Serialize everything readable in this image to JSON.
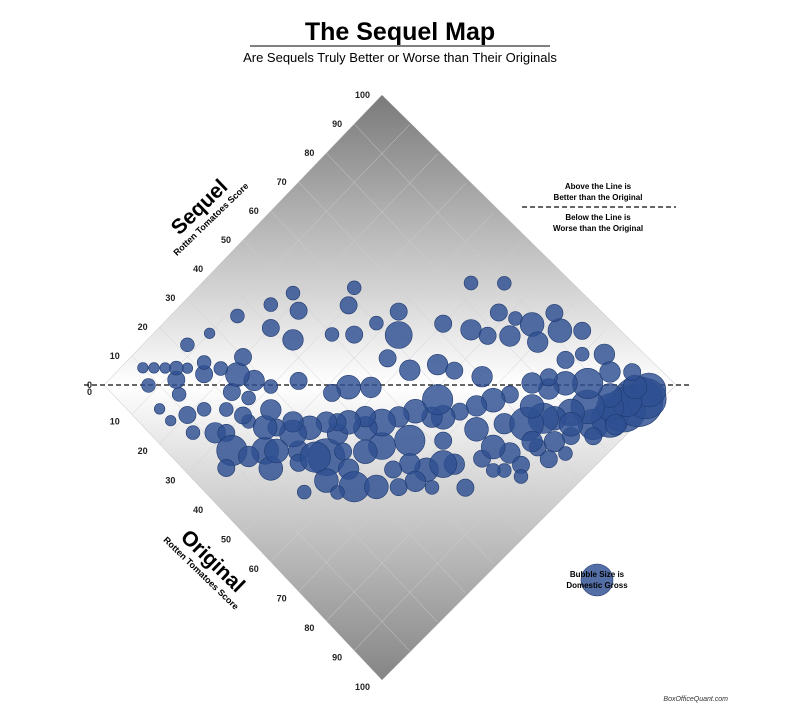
{
  "header": {
    "title": "The Sequel Map",
    "subtitle": "Are Sequels Truly Better or Worse than Their Originals"
  },
  "legend": {
    "above_line_1": "Above the Line is",
    "above_line_2": "Better than the Original",
    "below_line_1": "Below the Line is",
    "below_line_2": "Worse than the Original",
    "bubble_1": "Bubble Size is",
    "bubble_2": "Domestic Gross"
  },
  "credit": "BoxOfficeQuant.com",
  "colors": {
    "bubble": "#2e4f91",
    "bg_dark": "#7f7f7f",
    "bg_light": "#ffffff"
  },
  "chart_data": {
    "type": "scatter",
    "title": "The Sequel Map",
    "subtitle": "Are Sequels Truly Better or Worse than Their Originals",
    "x_axis": {
      "label_main": "Original",
      "label_sub": "Rotten Tomatoes Score",
      "range": [
        0,
        100
      ],
      "ticks": [
        "0",
        "10",
        "20",
        "30",
        "40",
        "50",
        "60",
        "70",
        "80",
        "90",
        "100"
      ]
    },
    "y_axis": {
      "label_main": "Sequel",
      "label_sub": "Rotten Tomatoes Score",
      "range": [
        0,
        100
      ],
      "ticks": [
        "0",
        "10",
        "20",
        "30",
        "40",
        "50",
        "60",
        "70",
        "80",
        "90",
        "100"
      ]
    },
    "reference_line": "sequel = original",
    "size_encoding": "Domestic Gross",
    "points": [
      {
        "x": 4,
        "y": 10,
        "s": 2
      },
      {
        "x": 8,
        "y": 8,
        "s": 3
      },
      {
        "x": 12,
        "y": 14,
        "s": 4
      },
      {
        "x": 15,
        "y": 12,
        "s": 3
      },
      {
        "x": 20,
        "y": 10,
        "s": 4
      },
      {
        "x": 22,
        "y": 14,
        "s": 3
      },
      {
        "x": 18,
        "y": 6,
        "s": 2
      },
      {
        "x": 28,
        "y": 12,
        "s": 5
      },
      {
        "x": 30,
        "y": 14,
        "s": 4
      },
      {
        "x": 26,
        "y": 18,
        "s": 3
      },
      {
        "x": 34,
        "y": 12,
        "s": 8
      },
      {
        "x": 40,
        "y": 18,
        "s": 7
      },
      {
        "x": 36,
        "y": 8,
        "s": 4
      },
      {
        "x": 32,
        "y": 20,
        "s": 3
      },
      {
        "x": 46,
        "y": 24,
        "s": 5
      },
      {
        "x": 48,
        "y": 22,
        "s": 4
      },
      {
        "x": 52,
        "y": 28,
        "s": 10
      },
      {
        "x": 56,
        "y": 24,
        "s": 6
      },
      {
        "x": 58,
        "y": 30,
        "s": 5
      },
      {
        "x": 62,
        "y": 28,
        "s": 8
      },
      {
        "x": 66,
        "y": 32,
        "s": 6
      },
      {
        "x": 70,
        "y": 36,
        "s": 4
      },
      {
        "x": 54,
        "y": 18,
        "s": 3
      },
      {
        "x": 44,
        "y": 16,
        "s": 6
      },
      {
        "x": 50,
        "y": 34,
        "s": 5
      },
      {
        "x": 60,
        "y": 40,
        "s": 7
      },
      {
        "x": 64,
        "y": 46,
        "s": 8
      },
      {
        "x": 72,
        "y": 44,
        "s": 6
      },
      {
        "x": 76,
        "y": 50,
        "s": 5
      },
      {
        "x": 70,
        "y": 52,
        "s": 4
      },
      {
        "x": 80,
        "y": 56,
        "s": 4
      },
      {
        "x": 74,
        "y": 60,
        "s": 6
      },
      {
        "x": 84,
        "y": 62,
        "s": 5
      },
      {
        "x": 86,
        "y": 58,
        "s": 3
      },
      {
        "x": 78,
        "y": 66,
        "s": 5
      },
      {
        "x": 88,
        "y": 68,
        "s": 4
      },
      {
        "x": 90,
        "y": 72,
        "s": 5
      },
      {
        "x": 92,
        "y": 76,
        "s": 4
      },
      {
        "x": 94,
        "y": 82,
        "s": 8
      },
      {
        "x": 96,
        "y": 86,
        "s": 10
      },
      {
        "x": 97,
        "y": 90,
        "s": 12
      },
      {
        "x": 98,
        "y": 94,
        "s": 14
      },
      {
        "x": 99,
        "y": 96,
        "s": 11
      },
      {
        "x": 98,
        "y": 98,
        "s": 9
      },
      {
        "x": 96,
        "y": 92,
        "s": 8
      },
      {
        "x": 94,
        "y": 88,
        "s": 7
      },
      {
        "x": 92,
        "y": 90,
        "s": 6
      },
      {
        "x": 95,
        "y": 96,
        "s": 6
      },
      {
        "x": 90,
        "y": 84,
        "s": 9
      },
      {
        "x": 88,
        "y": 80,
        "s": 7
      },
      {
        "x": 86,
        "y": 76,
        "s": 6
      },
      {
        "x": 84,
        "y": 74,
        "s": 8
      },
      {
        "x": 82,
        "y": 70,
        "s": 9
      },
      {
        "x": 80,
        "y": 74,
        "s": 6
      },
      {
        "x": 86,
        "y": 88,
        "s": 8
      },
      {
        "x": 82,
        "y": 84,
        "s": 6
      },
      {
        "x": 80,
        "y": 80,
        "s": 5
      },
      {
        "x": 78,
        "y": 82,
        "s": 4
      },
      {
        "x": 76,
        "y": 78,
        "s": 5
      },
      {
        "x": 74,
        "y": 72,
        "s": 4
      },
      {
        "x": 72,
        "y": 68,
        "s": 6
      },
      {
        "x": 70,
        "y": 64,
        "s": 5
      },
      {
        "x": 68,
        "y": 60,
        "s": 4
      },
      {
        "x": 66,
        "y": 56,
        "s": 6
      },
      {
        "x": 64,
        "y": 54,
        "s": 5
      },
      {
        "x": 62,
        "y": 58,
        "s": 8
      },
      {
        "x": 60,
        "y": 52,
        "s": 6
      },
      {
        "x": 58,
        "y": 48,
        "s": 5
      },
      {
        "x": 56,
        "y": 44,
        "s": 7
      },
      {
        "x": 54,
        "y": 40,
        "s": 6
      },
      {
        "x": 52,
        "y": 42,
        "s": 5
      },
      {
        "x": 50,
        "y": 38,
        "s": 6
      },
      {
        "x": 48,
        "y": 36,
        "s": 4
      },
      {
        "x": 46,
        "y": 34,
        "s": 5
      },
      {
        "x": 44,
        "y": 30,
        "s": 6
      },
      {
        "x": 42,
        "y": 26,
        "s": 7
      },
      {
        "x": 40,
        "y": 28,
        "s": 5
      },
      {
        "x": 38,
        "y": 24,
        "s": 4
      },
      {
        "x": 36,
        "y": 22,
        "s": 6
      },
      {
        "x": 34,
        "y": 26,
        "s": 5
      },
      {
        "x": 30,
        "y": 20,
        "s": 4
      },
      {
        "x": 28,
        "y": 24,
        "s": 3
      },
      {
        "x": 26,
        "y": 28,
        "s": 5
      },
      {
        "x": 24,
        "y": 22,
        "s": 4
      },
      {
        "x": 22,
        "y": 26,
        "s": 6
      },
      {
        "x": 20,
        "y": 30,
        "s": 4
      },
      {
        "x": 18,
        "y": 24,
        "s": 3
      },
      {
        "x": 16,
        "y": 20,
        "s": 4
      },
      {
        "x": 14,
        "y": 22,
        "s": 3
      },
      {
        "x": 12,
        "y": 18,
        "s": 2
      },
      {
        "x": 10,
        "y": 16,
        "s": 3
      },
      {
        "x": 8,
        "y": 14,
        "s": 2
      },
      {
        "x": 6,
        "y": 12,
        "s": 2
      },
      {
        "x": 14,
        "y": 6,
        "s": 2
      },
      {
        "x": 24,
        "y": 8,
        "s": 3
      },
      {
        "x": 38,
        "y": 14,
        "s": 5
      },
      {
        "x": 42,
        "y": 20,
        "s": 6
      },
      {
        "x": 50,
        "y": 26,
        "s": 8
      },
      {
        "x": 58,
        "y": 36,
        "s": 6
      },
      {
        "x": 68,
        "y": 42,
        "s": 5
      },
      {
        "x": 74,
        "y": 48,
        "s": 7
      },
      {
        "x": 80,
        "y": 60,
        "s": 6
      },
      {
        "x": 86,
        "y": 68,
        "s": 5
      },
      {
        "x": 90,
        "y": 78,
        "s": 6
      },
      {
        "x": 52,
        "y": 58,
        "s": 5
      },
      {
        "x": 46,
        "y": 56,
        "s": 4
      },
      {
        "x": 44,
        "y": 62,
        "s": 7
      },
      {
        "x": 40,
        "y": 66,
        "s": 4
      },
      {
        "x": 38,
        "y": 60,
        "s": 3
      },
      {
        "x": 36,
        "y": 54,
        "s": 4
      },
      {
        "x": 32,
        "y": 50,
        "s": 3
      },
      {
        "x": 30,
        "y": 58,
        "s": 4
      },
      {
        "x": 28,
        "y": 62,
        "s": 3
      },
      {
        "x": 50,
        "y": 72,
        "s": 4
      },
      {
        "x": 56,
        "y": 76,
        "s": 5
      },
      {
        "x": 60,
        "y": 78,
        "s": 4
      },
      {
        "x": 64,
        "y": 82,
        "s": 5
      },
      {
        "x": 62,
        "y": 86,
        "s": 3
      },
      {
        "x": 58,
        "y": 84,
        "s": 4
      },
      {
        "x": 66,
        "y": 88,
        "s": 6
      },
      {
        "x": 70,
        "y": 86,
        "s": 5
      },
      {
        "x": 72,
        "y": 92,
        "s": 6
      },
      {
        "x": 68,
        "y": 94,
        "s": 4
      },
      {
        "x": 54,
        "y": 90,
        "s": 3
      },
      {
        "x": 48,
        "y": 84,
        "s": 3
      },
      {
        "x": 76,
        "y": 96,
        "s": 4
      },
      {
        "x": 80,
        "y": 92,
        "s": 3
      },
      {
        "x": 84,
        "y": 96,
        "s": 5
      },
      {
        "x": 20,
        "y": 40,
        "s": 4
      },
      {
        "x": 16,
        "y": 44,
        "s": 3
      },
      {
        "x": 12,
        "y": 36,
        "s": 3
      },
      {
        "x": 22,
        "y": 48,
        "s": 4
      },
      {
        "x": 26,
        "y": 42,
        "s": 5
      },
      {
        "x": 18,
        "y": 50,
        "s": 3
      },
      {
        "x": 10,
        "y": 28,
        "s": 2
      },
      {
        "x": 8,
        "y": 22,
        "s": 3
      },
      {
        "x": 44,
        "y": 44,
        "s": 6
      },
      {
        "x": 48,
        "y": 48,
        "s": 5
      },
      {
        "x": 42,
        "y": 40,
        "s": 4
      },
      {
        "x": 56,
        "y": 64,
        "s": 5
      },
      {
        "x": 34,
        "y": 36,
        "s": 4
      },
      {
        "x": 30,
        "y": 30,
        "s": 3
      },
      {
        "x": 60,
        "y": 66,
        "s": 4
      },
      {
        "x": 66,
        "y": 70,
        "s": 5
      },
      {
        "x": 78,
        "y": 88,
        "s": 4
      },
      {
        "x": 88,
        "y": 94,
        "s": 5
      },
      {
        "x": 92,
        "y": 98,
        "s": 4
      },
      {
        "x": 94,
        "y": 72,
        "s": 3
      },
      {
        "x": 60,
        "y": 24,
        "s": 3
      },
      {
        "x": 66,
        "y": 38,
        "s": 4
      },
      {
        "x": 72,
        "y": 40,
        "s": 5
      },
      {
        "x": 54,
        "y": 32,
        "s": 4
      },
      {
        "x": 96,
        "y": 80,
        "s": 4
      },
      {
        "x": 98,
        "y": 86,
        "s": 5
      },
      {
        "x": 84,
        "y": 56,
        "s": 3
      },
      {
        "x": 88,
        "y": 62,
        "s": 4
      },
      {
        "x": 76,
        "y": 42,
        "s": 3
      },
      {
        "x": 82,
        "y": 48,
        "s": 4
      },
      {
        "x": 90,
        "y": 60,
        "s": 3
      },
      {
        "x": 92,
        "y": 68,
        "s": 4
      }
    ]
  }
}
